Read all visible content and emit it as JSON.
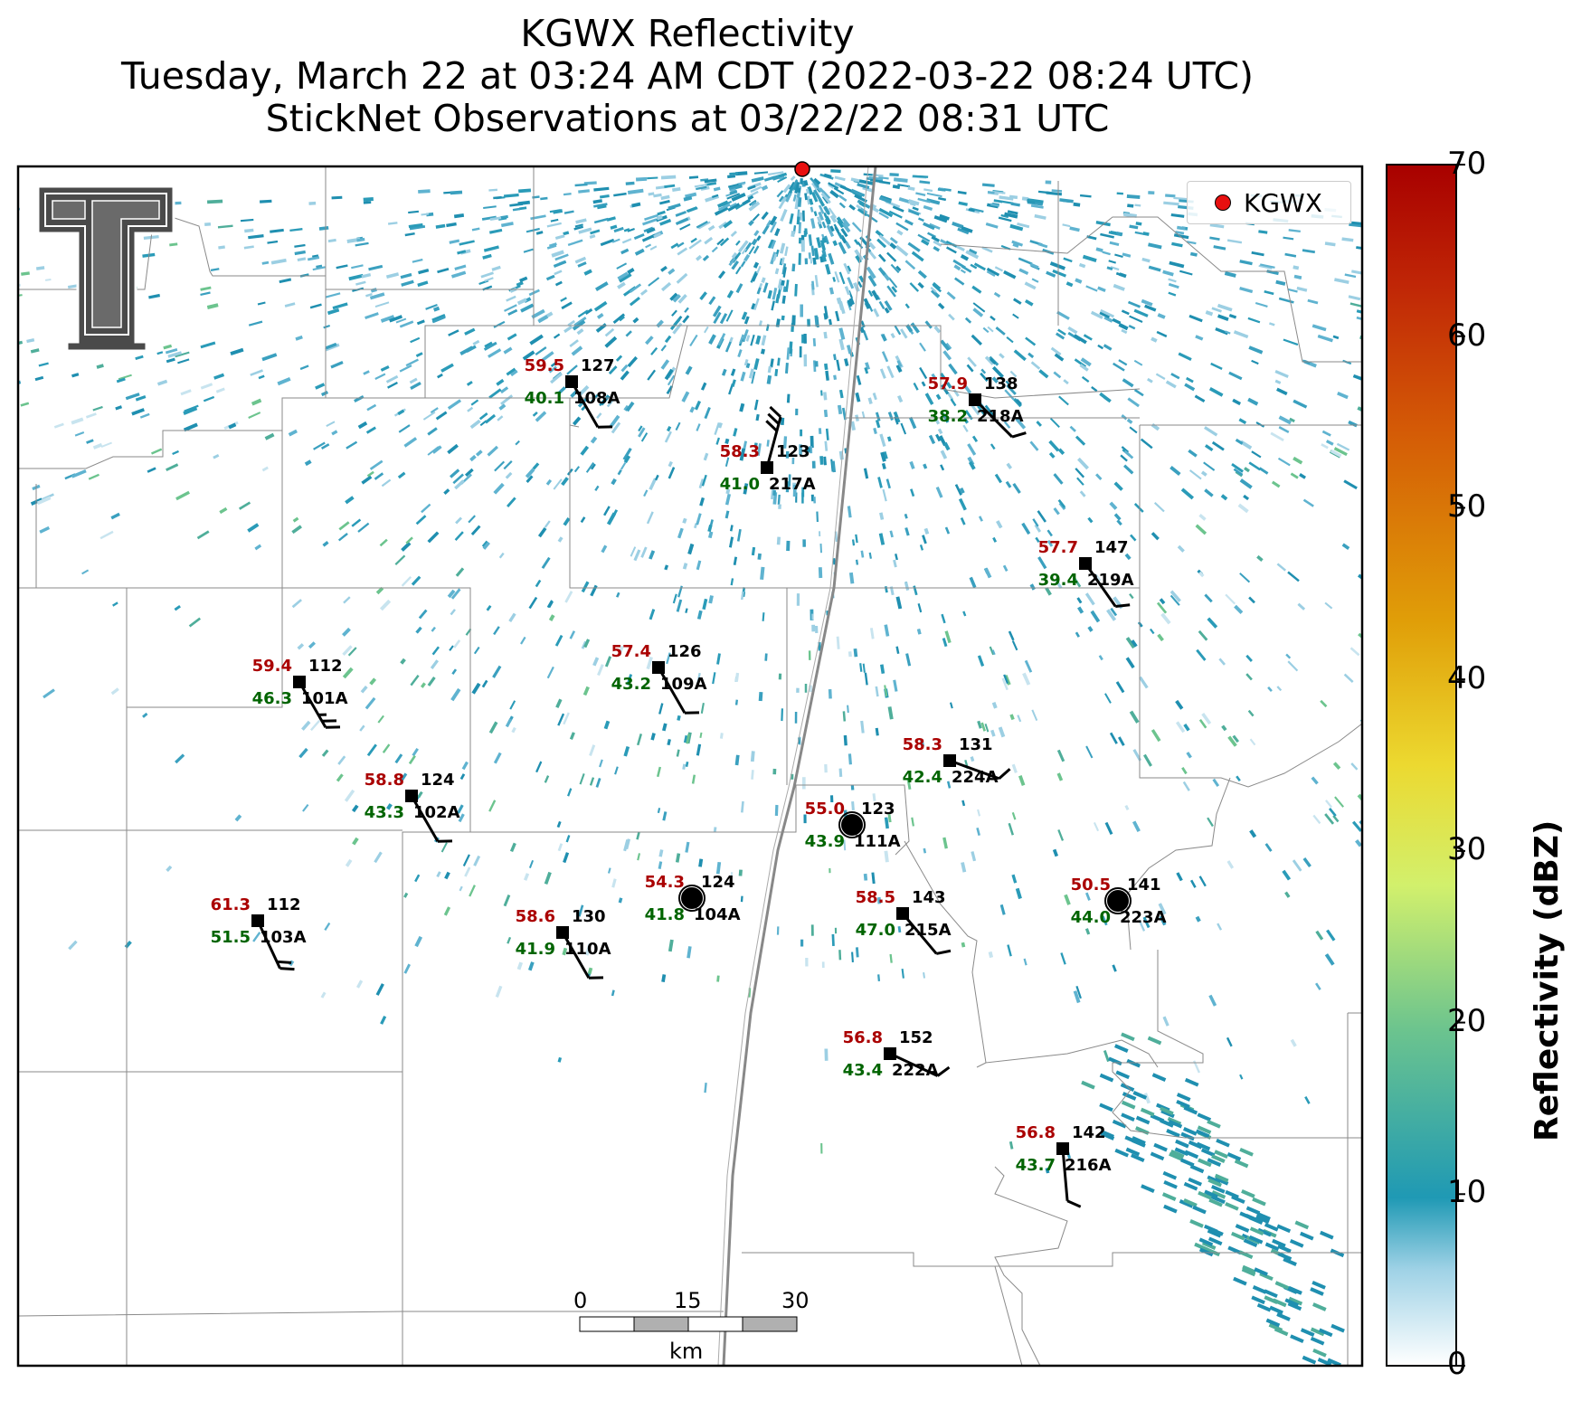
{
  "title": {
    "line1": "KGWX Reflectivity",
    "line2": "Tuesday, March 22 at 03:24 AM CDT (2022-03-22 08:24 UTC)",
    "line3": "StickNet Observations at 03/22/22 08:31 UTC"
  },
  "legend": {
    "label": "KGWX",
    "color": "#e81010"
  },
  "colorbar": {
    "title": "Reflectivity (dBZ)",
    "ticks": [
      "0",
      "10",
      "20",
      "30",
      "40",
      "50",
      "60",
      "70"
    ],
    "min": 0,
    "max": 70
  },
  "scalebar": {
    "labels": [
      "0",
      "15",
      "30"
    ],
    "unit": "km"
  },
  "stations": [
    {
      "id": "108A",
      "temp": "59.5",
      "dew": "40.1",
      "dir": "127",
      "wdir": 330,
      "wspd": 10
    },
    {
      "id": "218A",
      "temp": "57.9",
      "dew": "38.2",
      "dir": "138",
      "wdir": 315,
      "wspd": 10
    },
    {
      "id": "217A",
      "temp": "58.3",
      "dew": "41.0",
      "dir": "123",
      "wdir": 195,
      "wspd": 30
    },
    {
      "id": "219A",
      "temp": "57.7",
      "dew": "39.4",
      "dir": "147",
      "wdir": 325,
      "wspd": 10
    },
    {
      "id": "109A",
      "temp": "57.4",
      "dew": "43.2",
      "dir": "126",
      "wdir": 330,
      "wspd": 10
    },
    {
      "id": "101A",
      "temp": "59.4",
      "dew": "46.3",
      "dir": "112",
      "wdir": 330,
      "wspd": 15
    },
    {
      "id": "224A",
      "temp": "58.3",
      "dew": "42.4",
      "dir": "131",
      "wdir": 290,
      "wspd": 10
    },
    {
      "id": "102A",
      "temp": "58.8",
      "dew": "43.3",
      "dir": "124",
      "wdir": 330,
      "wspd": 10
    },
    {
      "id": "111A",
      "temp": "55.0",
      "dew": "43.9",
      "dir": "123",
      "wdir": 0,
      "wspd": 0
    },
    {
      "id": "104A",
      "temp": "54.3",
      "dew": "41.8",
      "dir": "124",
      "wdir": 0,
      "wspd": 0
    },
    {
      "id": "215A",
      "temp": "58.5",
      "dew": "47.0",
      "dir": "143",
      "wdir": 320,
      "wspd": 10
    },
    {
      "id": "223A",
      "temp": "50.5",
      "dew": "44.0",
      "dir": "141",
      "wdir": 0,
      "wspd": 0
    },
    {
      "id": "103A",
      "temp": "61.3",
      "dew": "51.5",
      "dir": "112",
      "wdir": 335,
      "wspd": 20
    },
    {
      "id": "110A",
      "temp": "58.6",
      "dew": "41.9",
      "dir": "130",
      "wdir": 330,
      "wspd": 10
    },
    {
      "id": "222A",
      "temp": "56.8",
      "dew": "43.4",
      "dir": "152",
      "wdir": 295,
      "wspd": 10
    },
    {
      "id": "216A",
      "temp": "56.8",
      "dew": "43.7",
      "dir": "142",
      "wdir": 355,
      "wspd": 10
    }
  ],
  "colors": {
    "temp": "#aa0000",
    "dew": "#006400",
    "radar": "#1f8fb0",
    "site": "#e81010"
  }
}
